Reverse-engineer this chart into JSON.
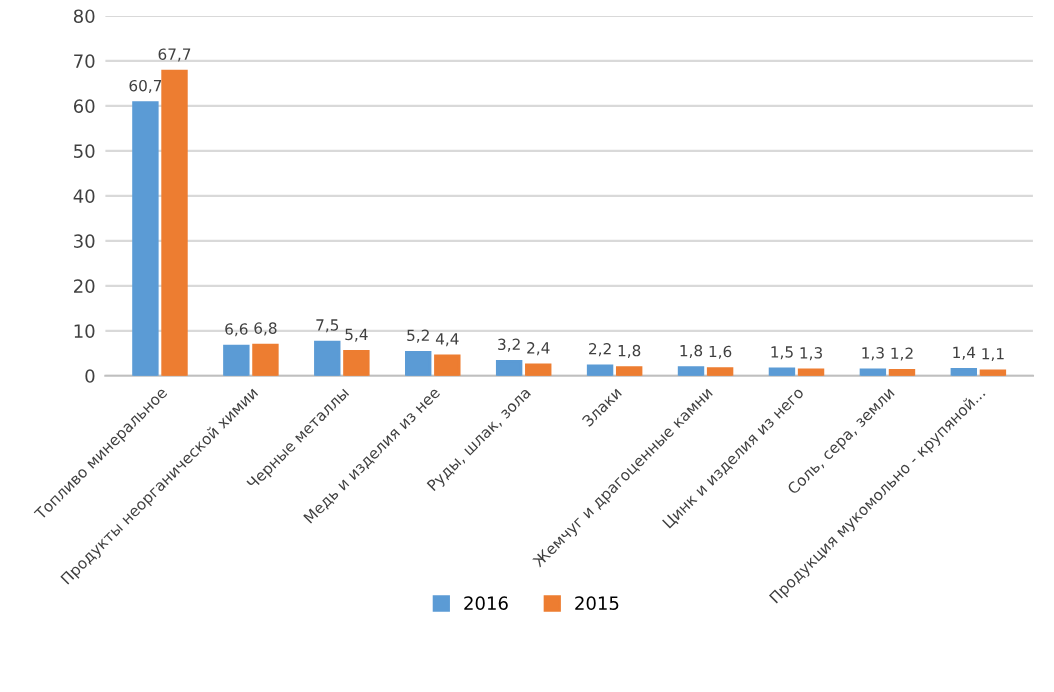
{
  "chart_data": {
    "type": "bar",
    "categories": [
      "Топливо минеральное",
      "Продукты неорганической химии",
      "Черные металлы",
      "Медь и изделия из нее",
      "Руды, шлак, зола",
      "Злаки",
      "Жемчуг и драгоценные камни",
      "Цинк и изделия из него",
      "Соль, сера, земли",
      "Продукция мукомольно - крупяной..."
    ],
    "series": [
      {
        "name": "2016",
        "color": "#5b9bd5",
        "values": [
          60.7,
          6.6,
          7.5,
          5.2,
          3.2,
          2.2,
          1.8,
          1.5,
          1.3,
          1.4
        ],
        "value_labels": [
          "60,7",
          "6,6",
          "7,5",
          "5,2",
          "3,2",
          "2,2",
          "1,8",
          "1,5",
          "1,3",
          "1,4"
        ]
      },
      {
        "name": "2015",
        "color": "#ed7d31",
        "values": [
          67.7,
          6.8,
          5.4,
          4.4,
          2.4,
          1.8,
          1.6,
          1.3,
          1.2,
          1.1
        ],
        "value_labels": [
          "67,7",
          "6,8",
          "5,4",
          "4,4",
          "2,4",
          "1,8",
          "1,6",
          "1,3",
          "1,2",
          "1,1"
        ]
      }
    ],
    "ylim": [
      0,
      80
    ],
    "yticks": [
      0,
      10,
      20,
      30,
      40,
      50,
      60,
      70,
      80
    ],
    "grid": "y",
    "legend": "bottom"
  }
}
